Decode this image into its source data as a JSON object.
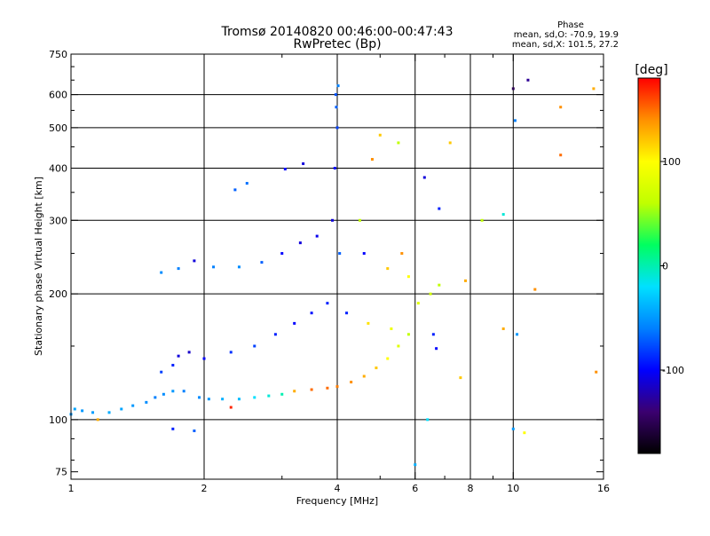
{
  "chart_data": {
    "type": "scatter",
    "title": "Tromsø 20140820 00:46:00-00:47:43",
    "subtitle": "RwPretec (Bp)",
    "xlabel": "Frequency [MHz]",
    "ylabel": "Stationary phase Virtual Height [km]",
    "x_scale": "log",
    "y_scale": "log",
    "xlim": [
      1,
      16
    ],
    "ylim": [
      72,
      750
    ],
    "x_ticks": [
      1,
      2,
      4,
      6,
      8,
      10,
      16
    ],
    "y_ticks": [
      75,
      100,
      200,
      300,
      400,
      500,
      600,
      750
    ],
    "x_gridlines": [
      2,
      4,
      6,
      8,
      10
    ],
    "y_gridlines": [
      100,
      200,
      300,
      400,
      500,
      600
    ],
    "grid": true,
    "phase_box": {
      "title": "Phase",
      "line_o": "mean, sd,O: -70.9, 19.9",
      "line_x": "mean, sd,X: 101.5, 27.2"
    },
    "colorbar": {
      "label": "[deg]",
      "range": [
        -180,
        180
      ],
      "ticks": [
        100,
        0,
        -100
      ],
      "colormap": [
        "#000000",
        "#3b0070",
        "#0000ff",
        "#0080ff",
        "#00e0ff",
        "#00ff60",
        "#c0ff00",
        "#ffff00",
        "#ff9000",
        "#ff0000"
      ]
    },
    "series": [
      {
        "points": [
          {
            "x": 1.0,
            "y": 103,
            "phase": -50
          },
          {
            "x": 1.02,
            "y": 106,
            "phase": -45
          },
          {
            "x": 1.06,
            "y": 105,
            "phase": -50
          },
          {
            "x": 1.12,
            "y": 104,
            "phase": -48
          },
          {
            "x": 1.15,
            "y": 100,
            "phase": 130
          },
          {
            "x": 1.22,
            "y": 104,
            "phase": -42
          },
          {
            "x": 1.3,
            "y": 106,
            "phase": -45
          },
          {
            "x": 1.38,
            "y": 108,
            "phase": -50
          },
          {
            "x": 1.48,
            "y": 110,
            "phase": -55
          },
          {
            "x": 1.55,
            "y": 113,
            "phase": -60
          },
          {
            "x": 1.62,
            "y": 115,
            "phase": -55
          },
          {
            "x": 1.7,
            "y": 117,
            "phase": -50
          },
          {
            "x": 1.8,
            "y": 117,
            "phase": -60
          },
          {
            "x": 1.95,
            "y": 113,
            "phase": -55
          },
          {
            "x": 2.05,
            "y": 112,
            "phase": -50
          },
          {
            "x": 2.2,
            "y": 112,
            "phase": -40
          },
          {
            "x": 2.4,
            "y": 112,
            "phase": -35
          },
          {
            "x": 2.6,
            "y": 113,
            "phase": -20
          },
          {
            "x": 2.8,
            "y": 114,
            "phase": -10
          },
          {
            "x": 3.0,
            "y": 115,
            "phase": 0
          },
          {
            "x": 3.2,
            "y": 117,
            "phase": 130
          },
          {
            "x": 3.5,
            "y": 118,
            "phase": 150
          },
          {
            "x": 3.8,
            "y": 119,
            "phase": 150
          },
          {
            "x": 4.0,
            "y": 120,
            "phase": 145
          },
          {
            "x": 4.3,
            "y": 123,
            "phase": 140
          },
          {
            "x": 4.6,
            "y": 127,
            "phase": 130
          },
          {
            "x": 4.9,
            "y": 133,
            "phase": 120
          },
          {
            "x": 5.2,
            "y": 140,
            "phase": 100
          },
          {
            "x": 5.5,
            "y": 150,
            "phase": 80
          },
          {
            "x": 5.8,
            "y": 160,
            "phase": 60
          },
          {
            "x": 1.6,
            "y": 130,
            "phase": -80
          },
          {
            "x": 1.7,
            "y": 135,
            "phase": -90
          },
          {
            "x": 1.75,
            "y": 142,
            "phase": -110
          },
          {
            "x": 1.85,
            "y": 145,
            "phase": -115
          },
          {
            "x": 2.0,
            "y": 140,
            "phase": -100
          },
          {
            "x": 2.3,
            "y": 145,
            "phase": -85
          },
          {
            "x": 2.6,
            "y": 150,
            "phase": -80
          },
          {
            "x": 2.9,
            "y": 160,
            "phase": -90
          },
          {
            "x": 3.2,
            "y": 170,
            "phase": -100
          },
          {
            "x": 3.5,
            "y": 180,
            "phase": -95
          },
          {
            "x": 3.8,
            "y": 190,
            "phase": -90
          },
          {
            "x": 1.6,
            "y": 225,
            "phase": -55
          },
          {
            "x": 1.75,
            "y": 230,
            "phase": -60
          },
          {
            "x": 1.9,
            "y": 240,
            "phase": -110
          },
          {
            "x": 2.1,
            "y": 232,
            "phase": -60
          },
          {
            "x": 2.4,
            "y": 232,
            "phase": -55
          },
          {
            "x": 2.7,
            "y": 238,
            "phase": -70
          },
          {
            "x": 3.0,
            "y": 250,
            "phase": -100
          },
          {
            "x": 3.3,
            "y": 265,
            "phase": -110
          },
          {
            "x": 3.6,
            "y": 275,
            "phase": -105
          },
          {
            "x": 2.35,
            "y": 355,
            "phase": -70
          },
          {
            "x": 2.5,
            "y": 368,
            "phase": -65
          },
          {
            "x": 3.05,
            "y": 398,
            "phase": -100
          },
          {
            "x": 3.35,
            "y": 410,
            "phase": -110
          },
          {
            "x": 3.9,
            "y": 300,
            "phase": -110
          },
          {
            "x": 3.95,
            "y": 400,
            "phase": -100
          },
          {
            "x": 4.0,
            "y": 500,
            "phase": -80
          },
          {
            "x": 3.98,
            "y": 560,
            "phase": -70
          },
          {
            "x": 4.02,
            "y": 630,
            "phase": -60
          },
          {
            "x": 3.97,
            "y": 600,
            "phase": -75
          },
          {
            "x": 4.05,
            "y": 250,
            "phase": -70
          },
          {
            "x": 4.5,
            "y": 300,
            "phase": 60
          },
          {
            "x": 4.8,
            "y": 420,
            "phase": 140
          },
          {
            "x": 5.0,
            "y": 480,
            "phase": 120
          },
          {
            "x": 5.5,
            "y": 460,
            "phase": 60
          },
          {
            "x": 4.6,
            "y": 250,
            "phase": -100
          },
          {
            "x": 5.2,
            "y": 230,
            "phase": 120
          },
          {
            "x": 5.6,
            "y": 250,
            "phase": 140
          },
          {
            "x": 5.8,
            "y": 220,
            "phase": 100
          },
          {
            "x": 6.1,
            "y": 190,
            "phase": 80
          },
          {
            "x": 6.5,
            "y": 200,
            "phase": 70
          },
          {
            "x": 6.8,
            "y": 210,
            "phase": 60
          },
          {
            "x": 4.2,
            "y": 180,
            "phase": -90
          },
          {
            "x": 4.7,
            "y": 170,
            "phase": 110
          },
          {
            "x": 5.3,
            "y": 165,
            "phase": 90
          },
          {
            "x": 6.3,
            "y": 380,
            "phase": -110
          },
          {
            "x": 6.8,
            "y": 320,
            "phase": -90
          },
          {
            "x": 7.2,
            "y": 460,
            "phase": 120
          },
          {
            "x": 8.5,
            "y": 300,
            "phase": 60
          },
          {
            "x": 9.5,
            "y": 310,
            "phase": -10
          },
          {
            "x": 10.0,
            "y": 620,
            "phase": -150
          },
          {
            "x": 10.8,
            "y": 650,
            "phase": -130
          },
          {
            "x": 10.1,
            "y": 520,
            "phase": -60
          },
          {
            "x": 12.8,
            "y": 560,
            "phase": 140
          },
          {
            "x": 12.8,
            "y": 430,
            "phase": 150
          },
          {
            "x": 15.2,
            "y": 620,
            "phase": 130
          },
          {
            "x": 9.5,
            "y": 165,
            "phase": 130
          },
          {
            "x": 10.2,
            "y": 160,
            "phase": -50
          },
          {
            "x": 11.2,
            "y": 205,
            "phase": 140
          },
          {
            "x": 15.4,
            "y": 130,
            "phase": 140
          },
          {
            "x": 10.0,
            "y": 95,
            "phase": -50
          },
          {
            "x": 10.6,
            "y": 93,
            "phase": 100
          },
          {
            "x": 6.0,
            "y": 78,
            "phase": -40
          },
          {
            "x": 6.4,
            "y": 100,
            "phase": -20
          },
          {
            "x": 7.6,
            "y": 126,
            "phase": 120
          },
          {
            "x": 7.8,
            "y": 215,
            "phase": 130
          },
          {
            "x": 6.7,
            "y": 148,
            "phase": -100
          },
          {
            "x": 6.6,
            "y": 160,
            "phase": -90
          },
          {
            "x": 1.7,
            "y": 95,
            "phase": -90
          },
          {
            "x": 1.9,
            "y": 94,
            "phase": -70
          },
          {
            "x": 2.3,
            "y": 107,
            "phase": 170
          }
        ]
      }
    ]
  }
}
